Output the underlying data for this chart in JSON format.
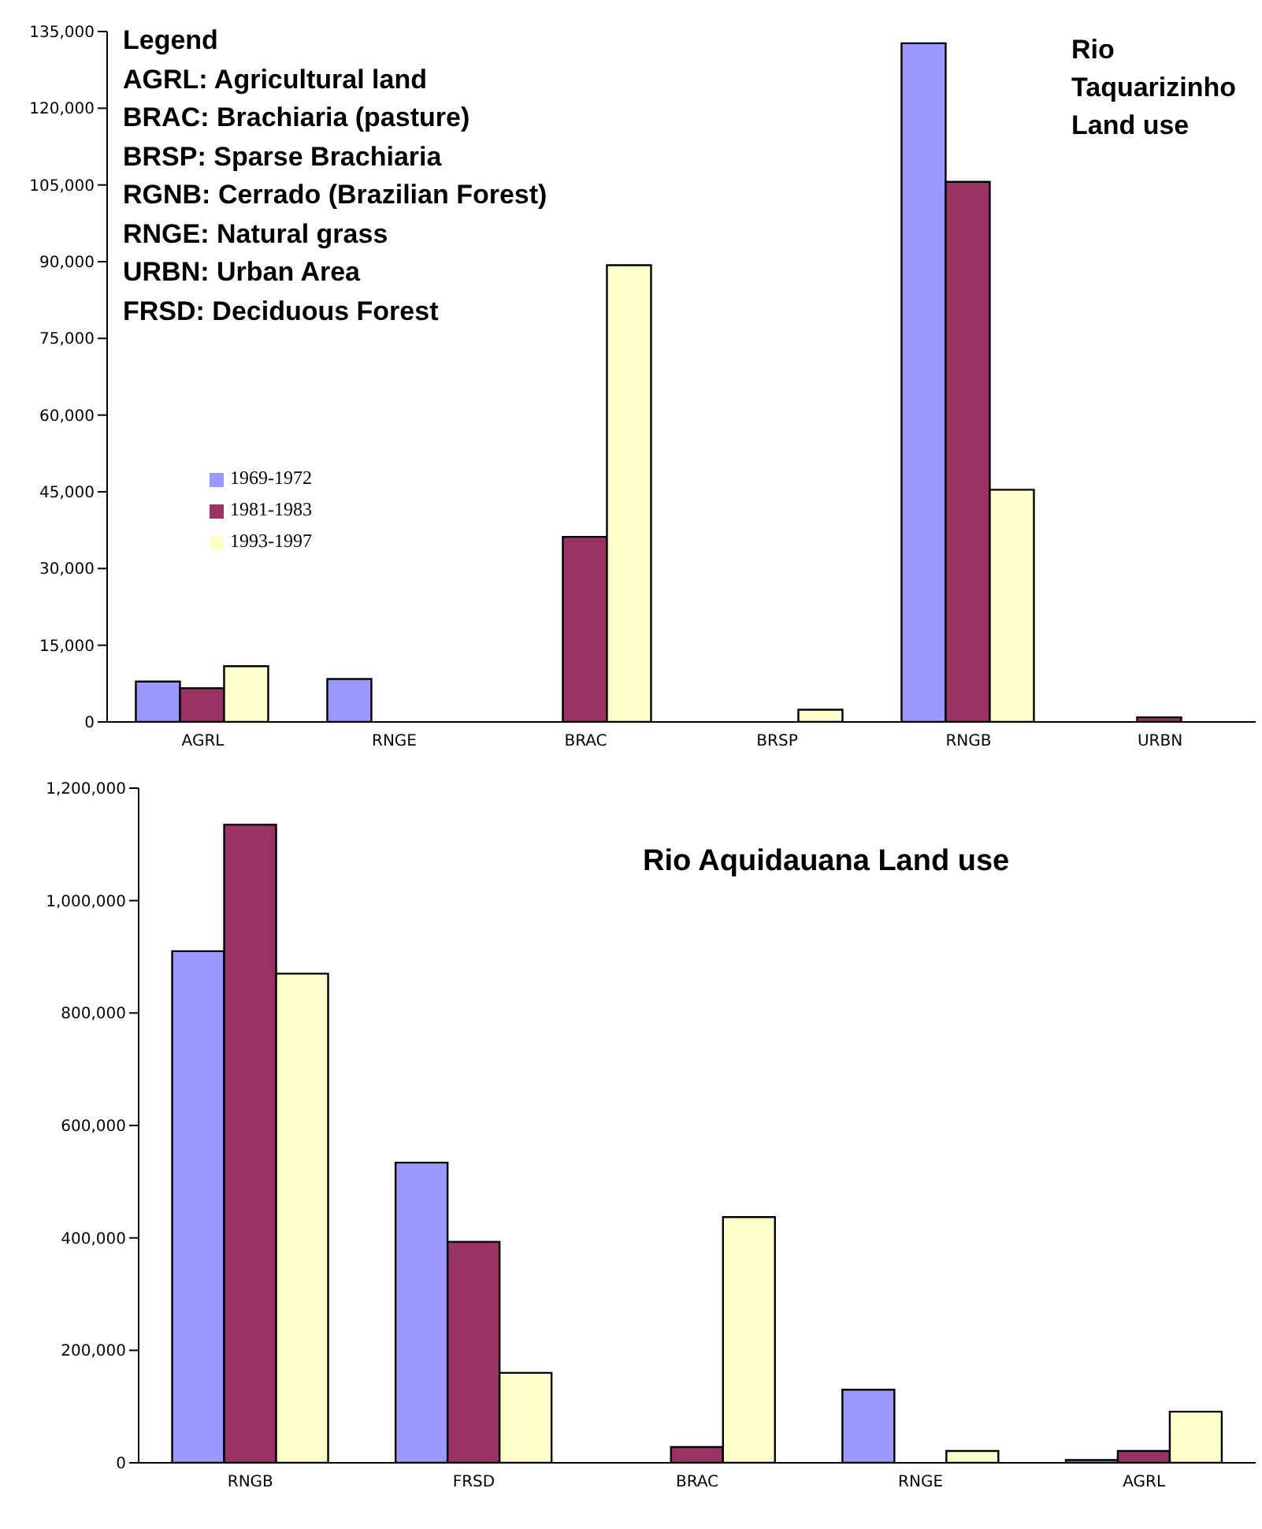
{
  "chart_data": [
    {
      "type": "bar",
      "title": "Rio Taquarizinho Land use",
      "annotations": [
        "Legend",
        "AGRL: Agricultural land",
        "BRAC: Brachiaria (pasture)",
        "BRSP: Sparse Brachiaria",
        "RGNB: Cerrado (Brazilian Forest)",
        "RNGE: Natural grass",
        "URBN: Urban Area",
        "FRSD: Deciduous Forest"
      ],
      "categories": [
        "AGRL",
        "RNGE",
        "BRAC",
        "BRSP",
        "RNGB",
        "URBN"
      ],
      "series": [
        {
          "name": "1969-1972",
          "color": "#9999ff",
          "values": [
            7900,
            8400,
            0,
            0,
            132700,
            0
          ]
        },
        {
          "name": "1981-1983",
          "color": "#993366",
          "values": [
            6600,
            0,
            36200,
            0,
            105600,
            900
          ]
        },
        {
          "name": "1993-1997",
          "color": "#ffffcc",
          "values": [
            10900,
            0,
            89300,
            2400,
            45400,
            0
          ]
        }
      ],
      "ylim": [
        0,
        135000
      ],
      "yticks": [
        0,
        {
          "value": 15000,
          "label": "15,000"
        },
        {
          "value": 30000,
          "label": "30,000"
        },
        {
          "value": 45000,
          "label": "45,000"
        },
        {
          "value": 60000,
          "label": "60,000"
        },
        {
          "value": 75000,
          "label": "75,000"
        },
        {
          "value": 90000,
          "label": "90,000"
        },
        {
          "value": 105000,
          "label": "105,000"
        },
        {
          "value": 120000,
          "label": "120,000"
        },
        {
          "value": 135000,
          "label": "135,000"
        }
      ],
      "grid": false,
      "legend": "left"
    },
    {
      "type": "bar",
      "title": "Rio Aquidauana Land use",
      "categories": [
        "RNGB",
        "FRSD",
        "BRAC",
        "RNGE",
        "AGRL"
      ],
      "series": [
        {
          "color": "#9999ff",
          "values": [
            910000,
            534000,
            0,
            130000,
            5000
          ]
        },
        {
          "color": "#993366",
          "values": [
            1135000,
            393000,
            28000,
            0,
            21000
          ]
        },
        {
          "color": "#ffffcc",
          "values": [
            870000,
            160000,
            437000,
            21000,
            91000
          ]
        }
      ],
      "ylim": [
        0,
        1200000
      ],
      "yticks": [
        0,
        {
          "value": 200000,
          "label": "200,000"
        },
        {
          "value": 400000,
          "label": "400,000"
        },
        {
          "value": 600000,
          "label": "600,000"
        },
        {
          "value": 800000,
          "label": "800,000"
        },
        {
          "value": 1000000,
          "label": "1,000,000"
        },
        {
          "value": 1200000,
          "label": "1,200,000"
        }
      ],
      "grid": false,
      "legend": false
    }
  ]
}
